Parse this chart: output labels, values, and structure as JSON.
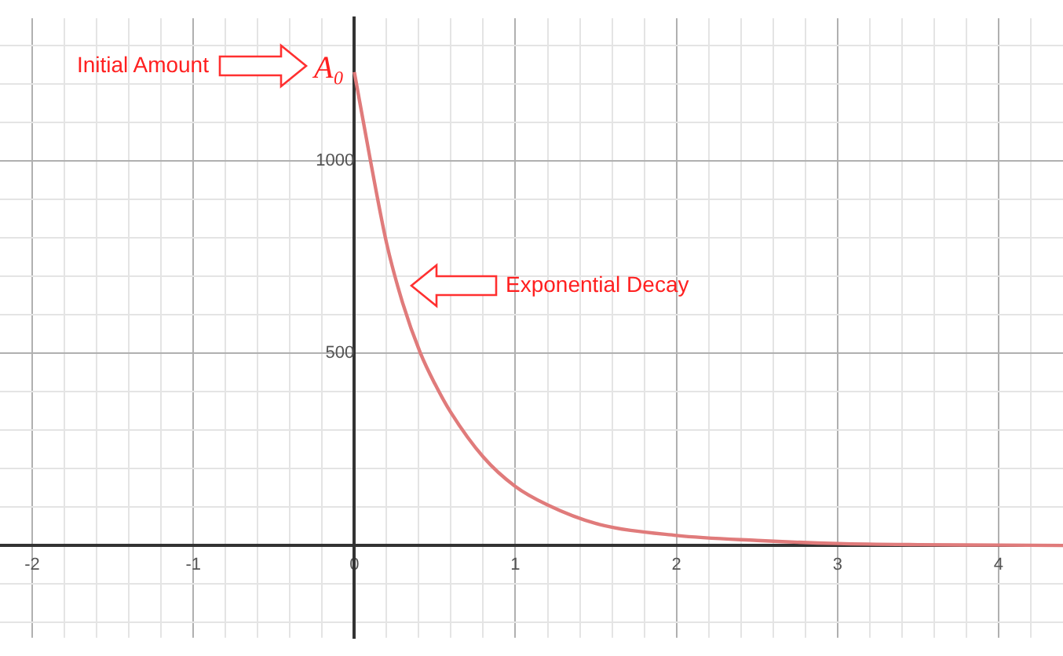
{
  "chart_data": {
    "type": "line",
    "x": [
      0,
      0.1,
      0.2,
      0.3,
      0.41,
      0.5,
      0.6,
      0.8,
      1,
      1.2,
      1.5,
      2,
      2.5,
      3,
      3.5,
      4,
      4.4
    ],
    "series": [
      {
        "color": "#e07b7b",
        "values": [
          1230,
          1000,
          786,
          630,
          500,
          420,
          345,
          230,
          153,
          105,
          57,
          26,
          13,
          5,
          2,
          1,
          0
        ]
      }
    ],
    "xlim": [
      -2.2,
      4.4
    ],
    "ylim": [
      -240,
      1370
    ],
    "xticks": [
      -2,
      {
        "value": -1.8,
        "label": null
      },
      {
        "value": -1.6,
        "label": null
      },
      {
        "value": -1.4,
        "label": null
      },
      {
        "value": -1.2,
        "label": null
      },
      -1,
      {
        "value": -0.8,
        "label": null
      },
      {
        "value": -0.6,
        "label": null
      },
      {
        "value": -0.4,
        "label": null
      },
      {
        "value": -0.2,
        "label": null
      },
      0,
      {
        "value": 0.2,
        "label": null
      },
      {
        "value": 0.4,
        "label": null
      },
      {
        "value": 0.6,
        "label": null
      },
      {
        "value": 0.8,
        "label": null
      },
      1,
      {
        "value": 1.2,
        "label": null
      },
      {
        "value": 1.4,
        "label": null
      },
      {
        "value": 1.6,
        "label": null
      },
      {
        "value": 1.8,
        "label": null
      },
      2,
      {
        "value": 2.2,
        "label": null
      },
      {
        "value": 2.4,
        "label": null
      },
      {
        "value": 2.6,
        "label": null
      },
      {
        "value": 2.8,
        "label": null
      },
      3,
      {
        "value": 3.2,
        "label": null
      },
      {
        "value": 3.4,
        "label": null
      },
      {
        "value": 3.6,
        "label": null
      },
      {
        "value": 3.8,
        "label": null
      },
      4,
      {
        "value": 4.2,
        "label": null
      }
    ],
    "yticks": [
      {
        "value": -200,
        "label": null
      },
      {
        "value": -100,
        "label": null
      },
      {
        "value": 0,
        "label": null
      },
      {
        "value": 100,
        "label": null
      },
      {
        "value": 200,
        "label": null
      },
      {
        "value": 300,
        "label": null
      },
      {
        "value": 400,
        "label": null
      },
      500,
      {
        "value": 600,
        "label": null
      },
      {
        "value": 700,
        "label": null
      },
      {
        "value": 800,
        "label": null
      },
      {
        "value": 900,
        "label": null
      },
      1000,
      {
        "value": 1100,
        "label": null
      },
      {
        "value": 1200,
        "label": null
      },
      {
        "value": 1300,
        "label": null
      }
    ],
    "annotations": [
      "Initial Amount",
      "A₀",
      "Exponential Decay"
    ],
    "grid": true,
    "legend": false,
    "marker": "none",
    "line_style": "solid"
  }
}
